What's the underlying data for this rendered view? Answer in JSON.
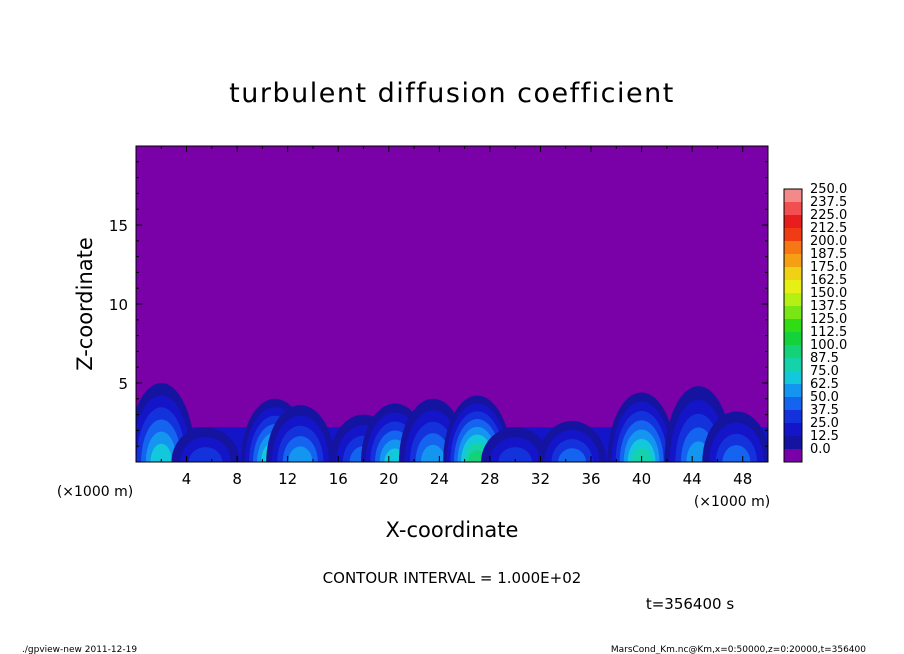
{
  "chart_data": {
    "type": "heatmap",
    "title": "turbulent diffusion coefficient",
    "xlabel": "X-coordinate",
    "ylabel": "Z-coordinate",
    "x_unit_label": "(×1000 m)",
    "y_unit_label": "(×1000 m)",
    "xlim": [
      0,
      50
    ],
    "ylim": [
      0,
      20
    ],
    "x_ticks": [
      "4",
      "8",
      "12",
      "16",
      "20",
      "24",
      "28",
      "32",
      "36",
      "40",
      "44",
      "48"
    ],
    "y_ticks": [
      "5",
      "10",
      "15"
    ],
    "background_color": "#7a00a8",
    "contour_interval_text": "CONTOUR INTERVAL = 1.000E+02",
    "time_text": "t=356400 s",
    "footer_left": "./gpview-new  2011-12-19",
    "footer_right": "MarsCond_Km.nc@Km,x=0:50000,z=0:20000,t=356400",
    "colorbar": {
      "levels": [
        "250.0",
        "237.5",
        "225.0",
        "212.5",
        "200.0",
        "187.5",
        "175.0",
        "162.5",
        "150.0",
        "137.5",
        "125.0",
        "112.5",
        "100.0",
        "87.5",
        "75.0",
        "62.5",
        "50.0",
        "37.5",
        "25.0",
        "12.5",
        "0.0"
      ],
      "colors": [
        "#f28a8a",
        "#f25050",
        "#e81e1e",
        "#f03c14",
        "#f57814",
        "#f5a014",
        "#f0d214",
        "#e6f014",
        "#b4f014",
        "#78e614",
        "#32dc14",
        "#14d23c",
        "#14d278",
        "#14d2aa",
        "#14c8dc",
        "#1496f0",
        "#1464f0",
        "#1432dc",
        "#1414c8",
        "#1414a0",
        "#7a00a8"
      ]
    },
    "plumes": [
      {
        "x": 2.0,
        "top": 5.0,
        "peak": 75.0
      },
      {
        "x": 5.5,
        "top": 2.2,
        "peak": 37.5
      },
      {
        "x": 11.0,
        "top": 4.0,
        "peak": 87.5
      },
      {
        "x": 13.0,
        "top": 3.6,
        "peak": 62.5
      },
      {
        "x": 18.0,
        "top": 3.0,
        "peak": 50.0
      },
      {
        "x": 20.5,
        "top": 3.7,
        "peak": 75.0
      },
      {
        "x": 23.5,
        "top": 4.0,
        "peak": 62.5
      },
      {
        "x": 27.0,
        "top": 4.2,
        "peak": 100.0
      },
      {
        "x": 30.0,
        "top": 2.2,
        "peak": 37.5
      },
      {
        "x": 34.5,
        "top": 2.6,
        "peak": 50.0
      },
      {
        "x": 40.0,
        "top": 4.4,
        "peak": 87.5
      },
      {
        "x": 44.5,
        "top": 4.8,
        "peak": 62.5
      },
      {
        "x": 47.5,
        "top": 3.2,
        "peak": 50.0
      }
    ]
  }
}
